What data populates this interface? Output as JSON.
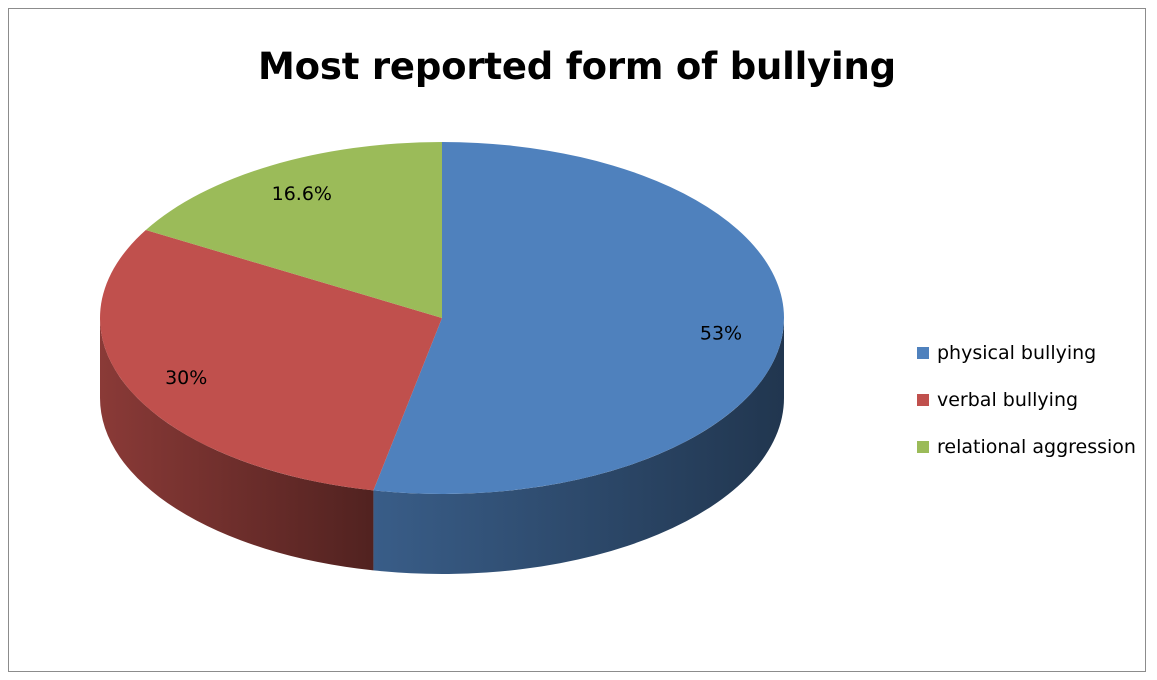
{
  "chart_data": {
    "type": "pie",
    "title": "Most reported form of bullying",
    "categories": [
      "physical bullying",
      "verbal bullying",
      "relational aggression"
    ],
    "values": [
      53,
      30,
      16.6
    ],
    "labels": [
      "53%",
      "30%",
      "16.6%"
    ],
    "colors": [
      "#4F81BD",
      "#C0504D",
      "#9BBB59"
    ],
    "style": "3D pie",
    "legend_position": "right"
  }
}
